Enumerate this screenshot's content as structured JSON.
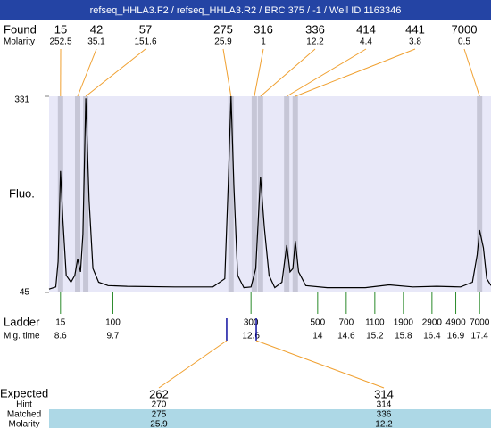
{
  "header": {
    "title": "refseq_HHLA3.F2 / refseq_HHLA3.R2 / BRC 375 / -1 / Well ID 1163346"
  },
  "chart_data": {
    "type": "electropherogram",
    "found_label": "Found",
    "molarity_label": "Molarity",
    "found": {
      "sizes": [
        15,
        42,
        57,
        275,
        316,
        336,
        414,
        441,
        7000
      ],
      "molarity": [
        252.5,
        35.1,
        151.6,
        25.9,
        1,
        12.2,
        4.4,
        3.8,
        0.5
      ],
      "mig_time": [
        8.6,
        8.96,
        9.13,
        12.18,
        12.67,
        12.8,
        13.35,
        13.53,
        17.4
      ]
    },
    "y_label": "Fluo.",
    "ylim": [
      45,
      331
    ],
    "yticks": [
      45,
      331
    ],
    "xlim": [
      8.36,
      17.64
    ],
    "trace": {
      "x": [
        8.36,
        8.5,
        8.55,
        8.6,
        8.65,
        8.72,
        8.82,
        8.9,
        8.96,
        9.02,
        9.07,
        9.13,
        9.2,
        9.28,
        9.4,
        9.6,
        10.0,
        11.0,
        11.8,
        12.05,
        12.12,
        12.18,
        12.24,
        12.32,
        12.45,
        12.6,
        12.7,
        12.8,
        12.88,
        12.98,
        13.1,
        13.25,
        13.35,
        13.42,
        13.48,
        13.53,
        13.6,
        13.75,
        14.2,
        15.0,
        15.5,
        16.0,
        16.5,
        17.0,
        17.25,
        17.35,
        17.4,
        17.48,
        17.55,
        17.64
      ],
      "y": [
        50,
        53,
        90,
        222,
        150,
        70,
        60,
        70,
        94,
        75,
        130,
        328,
        180,
        80,
        60,
        55,
        54,
        53,
        53,
        65,
        200,
        331,
        200,
        70,
        52,
        53,
        80,
        214,
        140,
        70,
        52,
        60,
        114,
        75,
        80,
        120,
        75,
        55,
        52,
        52,
        56,
        53,
        54,
        53,
        60,
        100,
        136,
        110,
        65,
        55
      ]
    },
    "ladder": {
      "label": "Ladder",
      "time_label": "Mig. time",
      "sizes": [
        15,
        100,
        300,
        500,
        700,
        1100,
        1900,
        2900,
        4900,
        7000
      ],
      "mig_time": [
        8.6,
        9.7,
        12.6,
        14,
        14.6,
        15.2,
        15.8,
        16.4,
        16.9,
        17.4
      ]
    },
    "expected": {
      "label": "Expected",
      "sizes": [
        262,
        314
      ],
      "mig_time": [
        12.09,
        12.71
      ],
      "rows": [
        {
          "label": "Hint",
          "values": [
            270,
            314
          ]
        },
        {
          "label": "Matched",
          "values": [
            275,
            336
          ]
        },
        {
          "label": "Molarity",
          "values": [
            25.9,
            12.2
          ]
        }
      ]
    }
  }
}
